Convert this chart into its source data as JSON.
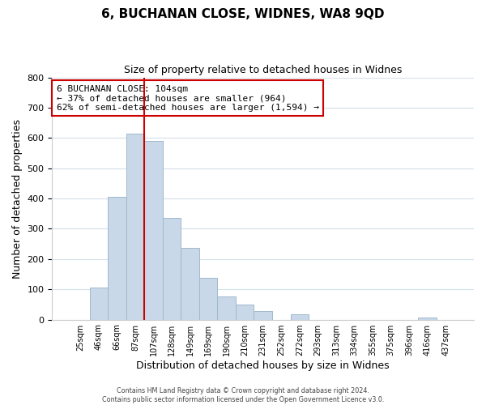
{
  "title": "6, BUCHANAN CLOSE, WIDNES, WA8 9QD",
  "subtitle": "Size of property relative to detached houses in Widnes",
  "xlabel": "Distribution of detached houses by size in Widnes",
  "ylabel": "Number of detached properties",
  "bar_labels": [
    "25sqm",
    "46sqm",
    "66sqm",
    "87sqm",
    "107sqm",
    "128sqm",
    "149sqm",
    "169sqm",
    "190sqm",
    "210sqm",
    "231sqm",
    "252sqm",
    "272sqm",
    "293sqm",
    "313sqm",
    "334sqm",
    "355sqm",
    "375sqm",
    "396sqm",
    "416sqm",
    "437sqm"
  ],
  "bar_values": [
    0,
    105,
    405,
    615,
    590,
    335,
    238,
    137,
    77,
    50,
    27,
    0,
    17,
    0,
    0,
    0,
    0,
    0,
    0,
    8,
    0
  ],
  "bar_color": "#c8d8e8",
  "bar_edge_color": "#a0b8cc",
  "vline_x_index": 4,
  "vline_color": "#cc0000",
  "annotation_line1": "6 BUCHANAN CLOSE: 104sqm",
  "annotation_line2": "← 37% of detached houses are smaller (964)",
  "annotation_line3": "62% of semi-detached houses are larger (1,594) →",
  "annotation_box_color": "#ffffff",
  "annotation_box_edge": "#cc0000",
  "ylim": [
    0,
    800
  ],
  "yticks": [
    0,
    100,
    200,
    300,
    400,
    500,
    600,
    700,
    800
  ],
  "footer_line1": "Contains HM Land Registry data © Crown copyright and database right 2024.",
  "footer_line2": "Contains public sector information licensed under the Open Government Licence v3.0.",
  "background_color": "#ffffff",
  "grid_color": "#d4dfe8"
}
